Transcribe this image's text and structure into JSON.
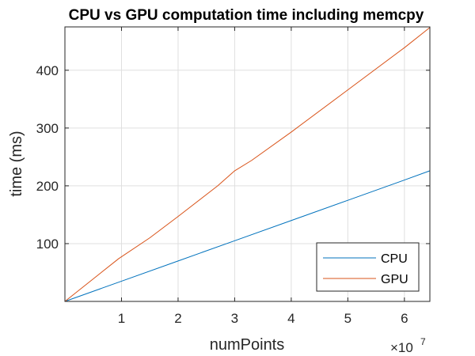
{
  "chart_data": {
    "type": "line",
    "title": "CPU vs GPU computation time including memcpy",
    "xlabel": "numPoints",
    "ylabel": "time (ms)",
    "x_exponent_base": "×10",
    "x_exponent_power": "7",
    "xlim": [
      0,
      64500000
    ],
    "ylim": [
      0,
      475
    ],
    "x_ticks": [
      10000000,
      20000000,
      30000000,
      40000000,
      50000000,
      60000000
    ],
    "x_tick_labels": [
      "1",
      "2",
      "3",
      "4",
      "5",
      "6"
    ],
    "y_ticks": [
      100,
      200,
      300,
      400
    ],
    "y_tick_labels": [
      "100",
      "200",
      "300",
      "400"
    ],
    "grid": true,
    "legend_position": "bottom-right",
    "series": [
      {
        "name": "CPU",
        "color": "#0072BD",
        "x": [
          0,
          10000000,
          20000000,
          30000000,
          40000000,
          50000000,
          60000000,
          64500000
        ],
        "y": [
          0,
          35,
          70,
          105,
          140,
          175,
          210,
          226
        ]
      },
      {
        "name": "GPU",
        "color": "#D95319",
        "x": [
          0,
          9500000,
          15000000,
          20000000,
          27000000,
          30000000,
          33000000,
          40000000,
          50000000,
          60000000,
          64500000
        ],
        "y": [
          0,
          74,
          110,
          147,
          200,
          226,
          244,
          293,
          366,
          439,
          474
        ]
      }
    ]
  }
}
